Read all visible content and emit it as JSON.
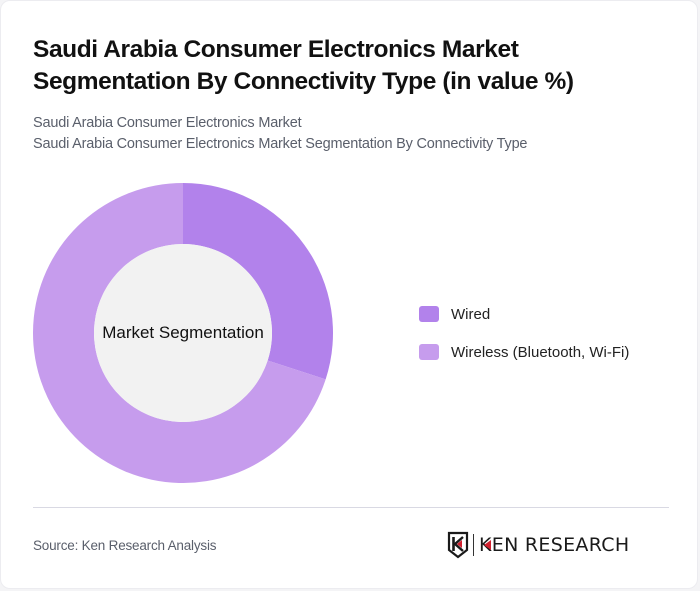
{
  "header": {
    "title": "Saudi Arabia Consumer Electronics Market Segmentation By Connectivity Type (in value %)",
    "subtitle_line1": "Saudi Arabia Consumer Electronics Market",
    "subtitle_line2": "Saudi Arabia Consumer Electronics Market Segmentation By Connectivity Type"
  },
  "chart": {
    "center_label": "Market Segmentation"
  },
  "legend": {
    "items": [
      {
        "label": "Wired",
        "color": "#b282eb"
      },
      {
        "label": "Wireless (Bluetooth, Wi-Fi)",
        "color": "#c69ced"
      }
    ]
  },
  "footer": {
    "source": "Source: Ken Research Analysis",
    "logo_text_k": "K",
    "logo_text_rest": "EN RESEARCH"
  },
  "colors": {
    "wired": "#b282eb",
    "wireless": "#c69ced",
    "hole": "#f2f2f2",
    "logo_accent": "#d0202f"
  },
  "chart_data": {
    "type": "pie",
    "variant": "donut",
    "title": "Saudi Arabia Consumer Electronics Market Segmentation By Connectivity Type (in value %)",
    "center_label": "Market Segmentation",
    "categories": [
      "Wired",
      "Wireless (Bluetooth, Wi-Fi)"
    ],
    "values": [
      30,
      70
    ],
    "unit": "%",
    "colors": [
      "#b282eb",
      "#c69ced"
    ],
    "start_angle": "12 o'clock, clockwise",
    "legend_position": "right",
    "data_labels": false
  }
}
